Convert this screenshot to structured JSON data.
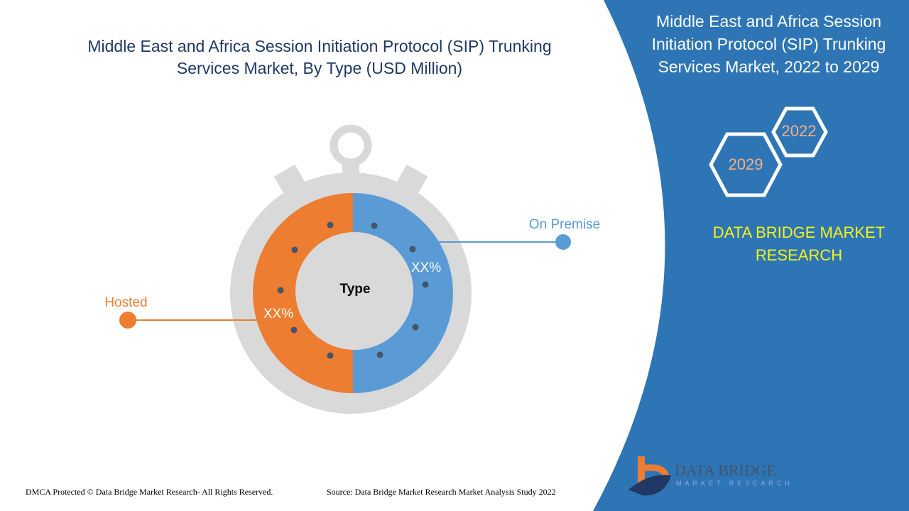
{
  "title": "Middle East and Africa Session Initiation Protocol (SIP) Trunking Services Market, By Type (USD Million)",
  "side_title": "Middle East and Africa Session Initiation Protocol (SIP) Trunking Services Market, 2022 to 2029",
  "years": [
    "2022",
    "2029"
  ],
  "brand": "DATA BRIDGE MARKET RESEARCH",
  "logo": {
    "name": "DATA BRIDGE",
    "sub": "MARKET RESEARCH"
  },
  "footer": {
    "left": "DMCA Protected © Data Bridge Market Research- All Rights Reserved.",
    "right": "Source: Data Bridge Market Research Market Analysis Study 2022"
  },
  "colors": {
    "hosted": "#ed7d31",
    "on_premise": "#5b9bd5",
    "panel": "#2e75b6"
  },
  "chart_data": {
    "type": "pie",
    "title": "Type",
    "categories": [
      "Hosted",
      "On Premise"
    ],
    "values": [
      50,
      50
    ],
    "data_labels": [
      "XX%",
      "XX%"
    ]
  }
}
